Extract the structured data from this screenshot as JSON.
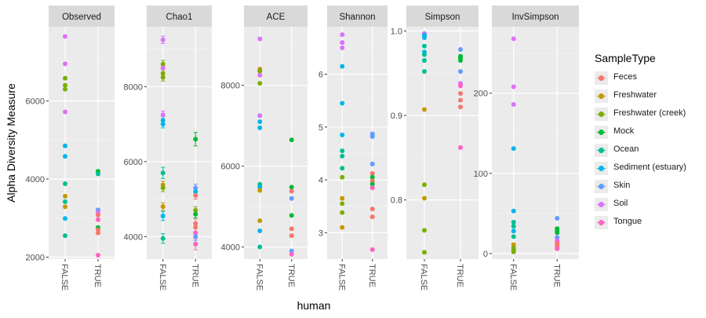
{
  "chart_data": {
    "type": "scatter",
    "xlabel": "human",
    "ylabel": "Alpha Diversity Measure",
    "legend_title": "SampleType",
    "legend_position": "right",
    "grid": true,
    "x_categories": [
      "FALSE",
      "TRUE"
    ],
    "series_colors": {
      "Feces": "#F8766D",
      "Freshwater": "#C49A00",
      "Freshwater (creek)": "#7CAE00",
      "Mock": "#00BA38",
      "Ocean": "#00C094",
      "Sediment (estuary)": "#00B6EB",
      "Skin": "#619CFF",
      "Soil": "#DB72FB",
      "Tongue": "#FF61C3"
    },
    "legend": [
      "Feces",
      "Freshwater",
      "Freshwater (creek)",
      "Mock",
      "Ocean",
      "Sediment (estuary)",
      "Skin",
      "Soil",
      "Tongue"
    ],
    "panels": [
      {
        "title": "Observed",
        "ylim": [
          1950,
          7900
        ],
        "yticks": [
          2000,
          4000,
          6000
        ],
        "points": [
          {
            "x": "FALSE",
            "y": 7650,
            "type": "Soil"
          },
          {
            "x": "FALSE",
            "y": 6950,
            "type": "Soil"
          },
          {
            "x": "FALSE",
            "y": 6580,
            "type": "Freshwater (creek)"
          },
          {
            "x": "FALSE",
            "y": 6400,
            "type": "Freshwater (creek)"
          },
          {
            "x": "FALSE",
            "y": 6300,
            "type": "Freshwater (creek)"
          },
          {
            "x": "FALSE",
            "y": 5720,
            "type": "Soil"
          },
          {
            "x": "FALSE",
            "y": 4850,
            "type": "Sediment (estuary)"
          },
          {
            "x": "FALSE",
            "y": 4580,
            "type": "Sediment (estuary)"
          },
          {
            "x": "FALSE",
            "y": 3880,
            "type": "Ocean"
          },
          {
            "x": "FALSE",
            "y": 3560,
            "type": "Freshwater"
          },
          {
            "x": "FALSE",
            "y": 3420,
            "type": "Ocean"
          },
          {
            "x": "FALSE",
            "y": 3290,
            "type": "Freshwater"
          },
          {
            "x": "FALSE",
            "y": 2990,
            "type": "Sediment (estuary)"
          },
          {
            "x": "FALSE",
            "y": 2550,
            "type": "Ocean"
          },
          {
            "x": "TRUE",
            "y": 4200,
            "type": "Mock"
          },
          {
            "x": "TRUE",
            "y": 4130,
            "type": "Ocean"
          },
          {
            "x": "TRUE",
            "y": 3210,
            "type": "Skin"
          },
          {
            "x": "TRUE",
            "y": 3150,
            "type": "Soil"
          },
          {
            "x": "TRUE",
            "y": 3080,
            "type": "Feces"
          },
          {
            "x": "TRUE",
            "y": 2960,
            "type": "Tongue"
          },
          {
            "x": "TRUE",
            "y": 2760,
            "type": "Mock"
          },
          {
            "x": "TRUE",
            "y": 2700,
            "type": "Feces"
          },
          {
            "x": "TRUE",
            "y": 2620,
            "type": "Feces"
          },
          {
            "x": "TRUE",
            "y": 2050,
            "type": "Tongue"
          }
        ]
      },
      {
        "title": "Chao1",
        "ylim": [
          3400,
          9600
        ],
        "yticks": [
          4000,
          6000,
          8000
        ],
        "points": [
          {
            "x": "FALSE",
            "y": 9250,
            "type": "Soil",
            "err": 100
          },
          {
            "x": "FALSE",
            "y": 8600,
            "type": "Freshwater (creek)",
            "err": 100
          },
          {
            "x": "FALSE",
            "y": 8500,
            "type": "Soil",
            "err": 100
          },
          {
            "x": "FALSE",
            "y": 8350,
            "type": "Freshwater (creek)",
            "err": 100
          },
          {
            "x": "FALSE",
            "y": 8250,
            "type": "Freshwater (creek)",
            "err": 100
          },
          {
            "x": "FALSE",
            "y": 7250,
            "type": "Soil",
            "err": 100
          },
          {
            "x": "FALSE",
            "y": 7100,
            "type": "Sediment (estuary)",
            "err": 100
          },
          {
            "x": "FALSE",
            "y": 7000,
            "type": "Sediment (estuary)",
            "err": 100
          },
          {
            "x": "FALSE",
            "y": 5700,
            "type": "Ocean",
            "err": 150
          },
          {
            "x": "FALSE",
            "y": 5380,
            "type": "Freshwater",
            "err": 100
          },
          {
            "x": "FALSE",
            "y": 5300,
            "type": "Freshwater (creek)",
            "err": 100
          },
          {
            "x": "FALSE",
            "y": 4800,
            "type": "Freshwater",
            "err": 100
          },
          {
            "x": "FALSE",
            "y": 4550,
            "type": "Sediment (estuary)",
            "err": 120
          },
          {
            "x": "FALSE",
            "y": 3950,
            "type": "Ocean",
            "err": 130
          },
          {
            "x": "TRUE",
            "y": 6600,
            "type": "Mock",
            "err": 180
          },
          {
            "x": "TRUE",
            "y": 5300,
            "type": "Skin",
            "err": 100
          },
          {
            "x": "TRUE",
            "y": 5200,
            "type": "Sediment (estuary)",
            "err": 100
          },
          {
            "x": "TRUE",
            "y": 5100,
            "type": "Feces",
            "err": 100
          },
          {
            "x": "TRUE",
            "y": 4700,
            "type": "Freshwater (creek)",
            "err": 100
          },
          {
            "x": "TRUE",
            "y": 4600,
            "type": "Mock",
            "err": 100
          },
          {
            "x": "TRUE",
            "y": 4350,
            "type": "Feces",
            "err": 120
          },
          {
            "x": "TRUE",
            "y": 4250,
            "type": "Feces",
            "err": 120
          },
          {
            "x": "TRUE",
            "y": 4100,
            "type": "Tongue",
            "err": 120
          },
          {
            "x": "TRUE",
            "y": 4000,
            "type": "Skin",
            "err": 100
          },
          {
            "x": "TRUE",
            "y": 3800,
            "type": "Tongue",
            "err": 150
          }
        ]
      },
      {
        "title": "ACE",
        "ylim": [
          3700,
          9450
        ],
        "yticks": [
          4000,
          6000,
          8000
        ],
        "points": [
          {
            "x": "FALSE",
            "y": 9150,
            "type": "Soil"
          },
          {
            "x": "FALSE",
            "y": 8400,
            "type": "Freshwater"
          },
          {
            "x": "FALSE",
            "y": 8350,
            "type": "Freshwater (creek)"
          },
          {
            "x": "FALSE",
            "y": 8250,
            "type": "Soil"
          },
          {
            "x": "FALSE",
            "y": 8050,
            "type": "Freshwater (creek)"
          },
          {
            "x": "FALSE",
            "y": 7250,
            "type": "Soil"
          },
          {
            "x": "FALSE",
            "y": 7100,
            "type": "Sediment (estuary)"
          },
          {
            "x": "FALSE",
            "y": 6950,
            "type": "Sediment (estuary)"
          },
          {
            "x": "FALSE",
            "y": 5550,
            "type": "Ocean"
          },
          {
            "x": "FALSE",
            "y": 5480,
            "type": "Sediment (estuary)"
          },
          {
            "x": "FALSE",
            "y": 5400,
            "type": "Freshwater"
          },
          {
            "x": "FALSE",
            "y": 4650,
            "type": "Freshwater"
          },
          {
            "x": "FALSE",
            "y": 4400,
            "type": "Sediment (estuary)"
          },
          {
            "x": "FALSE",
            "y": 4000,
            "type": "Ocean"
          },
          {
            "x": "TRUE",
            "y": 6650,
            "type": "Mock"
          },
          {
            "x": "TRUE",
            "y": 5480,
            "type": "Mock"
          },
          {
            "x": "TRUE",
            "y": 5380,
            "type": "Feces"
          },
          {
            "x": "TRUE",
            "y": 5200,
            "type": "Skin"
          },
          {
            "x": "TRUE",
            "y": 4780,
            "type": "Mock"
          },
          {
            "x": "TRUE",
            "y": 4450,
            "type": "Feces"
          },
          {
            "x": "TRUE",
            "y": 4280,
            "type": "Feces"
          },
          {
            "x": "TRUE",
            "y": 3900,
            "type": "Skin"
          },
          {
            "x": "TRUE",
            "y": 3820,
            "type": "Tongue"
          }
        ]
      },
      {
        "title": "Shannon",
        "ylim": [
          2.5,
          6.9
        ],
        "yticks": [
          3,
          4,
          5,
          6
        ],
        "points": [
          {
            "x": "FALSE",
            "y": 6.75,
            "type": "Soil"
          },
          {
            "x": "FALSE",
            "y": 6.6,
            "type": "Soil"
          },
          {
            "x": "FALSE",
            "y": 6.5,
            "type": "Soil"
          },
          {
            "x": "FALSE",
            "y": 6.15,
            "type": "Sediment (estuary)"
          },
          {
            "x": "FALSE",
            "y": 5.45,
            "type": "Sediment (estuary)"
          },
          {
            "x": "FALSE",
            "y": 4.85,
            "type": "Sediment (estuary)"
          },
          {
            "x": "FALSE",
            "y": 4.55,
            "type": "Ocean"
          },
          {
            "x": "FALSE",
            "y": 4.45,
            "type": "Ocean"
          },
          {
            "x": "FALSE",
            "y": 4.22,
            "type": "Ocean"
          },
          {
            "x": "FALSE",
            "y": 4.05,
            "type": "Freshwater (creek)"
          },
          {
            "x": "FALSE",
            "y": 3.65,
            "type": "Freshwater"
          },
          {
            "x": "FALSE",
            "y": 3.55,
            "type": "Freshwater (creek)"
          },
          {
            "x": "FALSE",
            "y": 3.38,
            "type": "Freshwater (creek)"
          },
          {
            "x": "FALSE",
            "y": 3.1,
            "type": "Freshwater"
          },
          {
            "x": "TRUE",
            "y": 4.87,
            "type": "Skin"
          },
          {
            "x": "TRUE",
            "y": 4.82,
            "type": "Skin"
          },
          {
            "x": "TRUE",
            "y": 4.3,
            "type": "Skin"
          },
          {
            "x": "TRUE",
            "y": 4.12,
            "type": "Feces"
          },
          {
            "x": "TRUE",
            "y": 4.05,
            "type": "Mock"
          },
          {
            "x": "TRUE",
            "y": 3.98,
            "type": "Feces"
          },
          {
            "x": "TRUE",
            "y": 3.92,
            "type": "Mock"
          },
          {
            "x": "TRUE",
            "y": 3.85,
            "type": "Tongue"
          },
          {
            "x": "TRUE",
            "y": 3.45,
            "type": "Feces"
          },
          {
            "x": "TRUE",
            "y": 3.3,
            "type": "Feces"
          },
          {
            "x": "TRUE",
            "y": 2.68,
            "type": "Tongue"
          }
        ]
      },
      {
        "title": "Simpson",
        "ylim": [
          0.73,
          1.005
        ],
        "yticks": [
          0.8,
          0.9,
          1.0
        ],
        "ytick_labels": [
          "0.8",
          "0.9",
          "1.0"
        ],
        "points": [
          {
            "x": "FALSE",
            "y": 0.997,
            "type": "Soil"
          },
          {
            "x": "FALSE",
            "y": 0.995,
            "type": "Sediment (estuary)"
          },
          {
            "x": "FALSE",
            "y": 0.992,
            "type": "Sediment (estuary)"
          },
          {
            "x": "FALSE",
            "y": 0.982,
            "type": "Ocean"
          },
          {
            "x": "FALSE",
            "y": 0.975,
            "type": "Sediment (estuary)"
          },
          {
            "x": "FALSE",
            "y": 0.972,
            "type": "Ocean"
          },
          {
            "x": "FALSE",
            "y": 0.965,
            "type": "Ocean"
          },
          {
            "x": "FALSE",
            "y": 0.952,
            "type": "Ocean"
          },
          {
            "x": "FALSE",
            "y": 0.907,
            "type": "Freshwater"
          },
          {
            "x": "FALSE",
            "y": 0.818,
            "type": "Freshwater (creek)"
          },
          {
            "x": "FALSE",
            "y": 0.802,
            "type": "Freshwater"
          },
          {
            "x": "FALSE",
            "y": 0.764,
            "type": "Freshwater (creek)"
          },
          {
            "x": "FALSE",
            "y": 0.738,
            "type": "Freshwater (creek)"
          },
          {
            "x": "TRUE",
            "y": 0.978,
            "type": "Skin"
          },
          {
            "x": "TRUE",
            "y": 0.97,
            "type": "Mock"
          },
          {
            "x": "TRUE",
            "y": 0.968,
            "type": "Mock"
          },
          {
            "x": "TRUE",
            "y": 0.965,
            "type": "Mock"
          },
          {
            "x": "TRUE",
            "y": 0.952,
            "type": "Skin"
          },
          {
            "x": "TRUE",
            "y": 0.938,
            "type": "Soil"
          },
          {
            "x": "TRUE",
            "y": 0.935,
            "type": "Tongue"
          },
          {
            "x": "TRUE",
            "y": 0.926,
            "type": "Feces"
          },
          {
            "x": "TRUE",
            "y": 0.918,
            "type": "Feces"
          },
          {
            "x": "TRUE",
            "y": 0.91,
            "type": "Feces"
          },
          {
            "x": "TRUE",
            "y": 0.862,
            "type": "Tongue"
          }
        ]
      },
      {
        "title": "InvSimpson",
        "ylim": [
          -7,
          283
        ],
        "yticks": [
          0,
          100,
          200
        ],
        "points": [
          {
            "x": "FALSE",
            "y": 268,
            "type": "Soil"
          },
          {
            "x": "FALSE",
            "y": 208,
            "type": "Soil"
          },
          {
            "x": "FALSE",
            "y": 186,
            "type": "Soil"
          },
          {
            "x": "FALSE",
            "y": 131,
            "type": "Sediment (estuary)"
          },
          {
            "x": "FALSE",
            "y": 53,
            "type": "Sediment (estuary)"
          },
          {
            "x": "FALSE",
            "y": 39,
            "type": "Ocean"
          },
          {
            "x": "FALSE",
            "y": 34,
            "type": "Ocean"
          },
          {
            "x": "FALSE",
            "y": 28,
            "type": "Sediment (estuary)"
          },
          {
            "x": "FALSE",
            "y": 21,
            "type": "Ocean"
          },
          {
            "x": "FALSE",
            "y": 11,
            "type": "Freshwater"
          },
          {
            "x": "FALSE",
            "y": 7,
            "type": "Freshwater (creek)"
          },
          {
            "x": "FALSE",
            "y": 4,
            "type": "Freshwater (creek)"
          },
          {
            "x": "FALSE",
            "y": 2,
            "type": "Freshwater (creek)"
          },
          {
            "x": "TRUE",
            "y": 44,
            "type": "Skin"
          },
          {
            "x": "TRUE",
            "y": 31,
            "type": "Mock"
          },
          {
            "x": "TRUE",
            "y": 28,
            "type": "Mock"
          },
          {
            "x": "TRUE",
            "y": 26,
            "type": "Mock"
          },
          {
            "x": "TRUE",
            "y": 20,
            "type": "Skin"
          },
          {
            "x": "TRUE",
            "y": 16,
            "type": "Soil"
          },
          {
            "x": "TRUE",
            "y": 14,
            "type": "Tongue"
          },
          {
            "x": "TRUE",
            "y": 12,
            "type": "Feces"
          },
          {
            "x": "TRUE",
            "y": 10,
            "type": "Feces"
          },
          {
            "x": "TRUE",
            "y": 8,
            "type": "Feces"
          },
          {
            "x": "TRUE",
            "y": 6,
            "type": "Tongue"
          }
        ]
      }
    ]
  }
}
